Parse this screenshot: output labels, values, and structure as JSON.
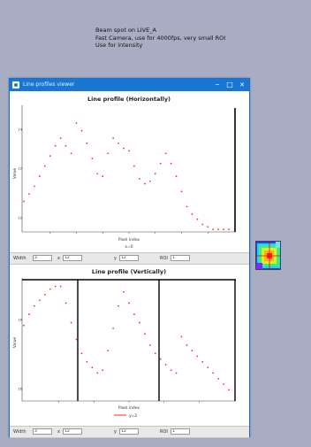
{
  "desktop": {
    "lines": [
      "Beam spot on LIVE_A",
      "Fast Camera, use for 4000fps, very small ROI",
      "Use for intensity"
    ]
  },
  "window": {
    "title": "Line profiles viewer",
    "minimize_glyph": "─",
    "maximize_glyph": "□",
    "close_glyph": "✕"
  },
  "top_plot": {
    "title": "Line profile (Horizontally)",
    "xlabel": "Pixel index",
    "ylabel": "Value",
    "legend": "x=0",
    "y_ticks": [
      "14",
      "12",
      "10"
    ],
    "x_ticks": [
      "",
      "",
      "",
      "",
      "",
      "",
      ""
    ]
  },
  "top_controls": {
    "width_label": "Width",
    "width_value": "3",
    "x_label": "x",
    "x_value": "12",
    "y_label": "y",
    "y_value": "12",
    "roi_label": "ROI",
    "roi_value": "1"
  },
  "bottom_plot": {
    "title": "Line profile (Vertically)",
    "xlabel": "Pixel index",
    "ylabel": "Value",
    "legend": "y=2",
    "y_ticks": [
      "18",
      "16"
    ],
    "x_ticks": [
      "",
      "",
      "",
      "",
      ""
    ]
  },
  "bottom_controls": {
    "width_label": "Width",
    "width_value": "3",
    "x_label": "x",
    "x_value": "12",
    "y_label": "y",
    "y_value": "12",
    "roi_label": "ROI",
    "roi_value": "1"
  },
  "colors": {
    "titlebar": "#1976d2",
    "profile": "#ff2a2a",
    "desktop": "#a9adc3"
  },
  "chart_data": [
    {
      "type": "scatter",
      "title": "Line profile (Horizontally)",
      "xlabel": "Pixel index",
      "ylabel": "Value",
      "xlim": [
        0,
        40
      ],
      "ylim": [
        9.6,
        14.6
      ],
      "grid": false,
      "legend": "bottom-center",
      "series": [
        {
          "name": "x=0",
          "x": [
            0,
            1,
            2,
            3,
            4,
            5,
            6,
            7,
            8,
            9,
            10,
            11,
            12,
            13,
            14,
            15,
            16,
            17,
            18,
            19,
            20,
            21,
            22,
            23,
            24,
            25,
            26,
            27,
            28,
            29,
            30,
            31,
            32,
            33,
            34,
            35,
            36,
            37,
            38,
            39
          ],
          "y": [
            10.8,
            11.1,
            11.4,
            11.8,
            12.2,
            12.6,
            13.0,
            13.3,
            13.0,
            12.7,
            13.9,
            13.6,
            13.1,
            12.5,
            11.9,
            11.8,
            12.7,
            13.3,
            13.1,
            12.9,
            12.8,
            12.2,
            11.7,
            11.5,
            11.6,
            11.9,
            12.3,
            12.7,
            12.3,
            11.8,
            11.2,
            10.6,
            10.3,
            10.1,
            9.9,
            9.8,
            9.7,
            9.7,
            9.7,
            9.7
          ]
        }
      ]
    },
    {
      "type": "scatter",
      "title": "Line profile (Vertically)",
      "xlabel": "Pixel index",
      "ylabel": "Value",
      "xlim": [
        0,
        40
      ],
      "ylim": [
        14.8,
        19.2
      ],
      "grid": false,
      "legend": "bottom-center",
      "series": [
        {
          "name": "y=2",
          "x": [
            0,
            1,
            2,
            3,
            4,
            5,
            6,
            7,
            8,
            9,
            10,
            11,
            12,
            13,
            14,
            15,
            16,
            17,
            18,
            19,
            20,
            21,
            22,
            23,
            24,
            25,
            26,
            27,
            28,
            29,
            30,
            31,
            32,
            33,
            34,
            35,
            36,
            37,
            38,
            39
          ],
          "y": [
            17.5,
            17.9,
            18.2,
            18.4,
            18.6,
            18.8,
            18.9,
            18.9,
            18.3,
            17.6,
            17.0,
            16.5,
            16.2,
            16.0,
            15.8,
            15.9,
            16.6,
            17.4,
            18.2,
            18.7,
            18.3,
            17.9,
            17.6,
            17.2,
            16.8,
            16.5,
            16.3,
            16.1,
            15.9,
            15.8,
            17.1,
            16.8,
            16.6,
            16.4,
            16.2,
            16.0,
            15.8,
            15.6,
            15.4,
            15.2
          ]
        }
      ]
    }
  ]
}
